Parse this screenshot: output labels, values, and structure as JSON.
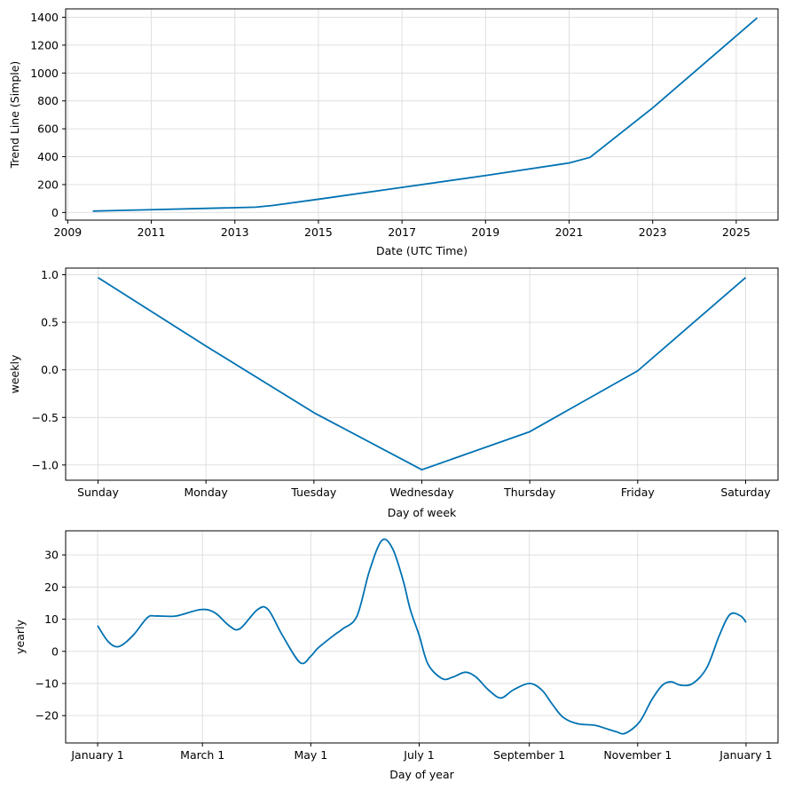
{
  "line_color": "#0072b2",
  "chart_data": [
    {
      "type": "line",
      "xlabel": "Date (UTC Time)",
      "ylabel": "Trend Line (Simple)",
      "x_ticks": [
        "2009",
        "2011",
        "2013",
        "2015",
        "2017",
        "2019",
        "2021",
        "2023",
        "2025"
      ],
      "x_tick_values": [
        2009,
        2011,
        2013,
        2015,
        2017,
        2019,
        2021,
        2023,
        2025
      ],
      "xlim": [
        2008.95,
        2026.0
      ],
      "y_ticks": [
        "0",
        "200",
        "400",
        "600",
        "800",
        "1000",
        "1200",
        "1400"
      ],
      "y_tick_values": [
        0,
        200,
        400,
        600,
        800,
        1000,
        1200,
        1400
      ],
      "ylim": [
        -55,
        1460
      ],
      "grid": true,
      "series": [
        {
          "x": [
            2009.6,
            2011.0,
            2013.5,
            2013.9,
            2015.0,
            2017.0,
            2019.0,
            2021.0,
            2021.5,
            2023.0,
            2025.5
          ],
          "y": [
            10,
            20,
            38,
            50,
            95,
            180,
            265,
            355,
            395,
            750,
            1395
          ]
        }
      ]
    },
    {
      "type": "line",
      "xlabel": "Day of week",
      "ylabel": "weekly",
      "x_ticks": [
        "Sunday",
        "Monday",
        "Tuesday",
        "Wednesday",
        "Thursday",
        "Friday",
        "Saturday"
      ],
      "x_tick_values": [
        0,
        1,
        2,
        3,
        4,
        5,
        6
      ],
      "xlim": [
        -0.3,
        6.3
      ],
      "y_ticks": [
        "1.0",
        "0.5",
        "0.0",
        "−0.5",
        "−1.0"
      ],
      "y_tick_values": [
        1.0,
        0.5,
        0.0,
        -0.5,
        -1.0
      ],
      "ylim": [
        -1.16,
        1.07
      ],
      "grid": true,
      "series": [
        {
          "x": [
            0,
            1,
            2,
            3,
            4,
            5,
            6
          ],
          "y": [
            0.97,
            0.25,
            -0.45,
            -1.05,
            -0.65,
            -0.01,
            0.97
          ]
        }
      ]
    },
    {
      "type": "line",
      "xlabel": "Day of year",
      "ylabel": "yearly",
      "x_ticks": [
        "January 1",
        "March 1",
        "May 1",
        "July 1",
        "September 1",
        "November 1",
        "January 1"
      ],
      "x_tick_values": [
        0,
        59,
        120,
        181,
        243,
        304,
        365
      ],
      "xlim": [
        -18,
        383
      ],
      "y_ticks": [
        "30",
        "20",
        "10",
        "0",
        "−10",
        "−20"
      ],
      "y_tick_values": [
        30,
        20,
        10,
        0,
        -10,
        -20
      ],
      "ylim": [
        -28.5,
        37.5
      ],
      "grid": true,
      "series": [
        {
          "x": [
            0,
            6,
            12,
            20,
            28,
            33,
            44,
            58,
            66,
            74,
            80,
            90,
            96,
            104,
            114,
            120,
            124,
            133,
            138,
            146,
            153,
            160,
            166,
            172,
            176,
            181,
            186,
            194,
            200,
            207,
            213,
            220,
            227,
            234,
            243,
            250,
            256,
            262,
            270,
            280,
            286,
            292,
            297,
            305,
            312,
            318,
            323,
            328,
            335,
            343,
            350,
            356,
            362,
            365
          ],
          "y": [
            8,
            3,
            1.5,
            5,
            10.5,
            11,
            11,
            13,
            12,
            8,
            7,
            13,
            13,
            5,
            -3.5,
            -1.5,
            1,
            5,
            7,
            11,
            25,
            34.5,
            32,
            22,
            13,
            5,
            -4,
            -8.5,
            -8,
            -6.5,
            -8,
            -12,
            -14.5,
            -12,
            -10,
            -12,
            -16.5,
            -20.5,
            -22.5,
            -23,
            -24,
            -25,
            -25.5,
            -22,
            -15,
            -10.5,
            -9.5,
            -10.5,
            -10,
            -5,
            5,
            11.5,
            11,
            9
          ]
        }
      ]
    }
  ]
}
